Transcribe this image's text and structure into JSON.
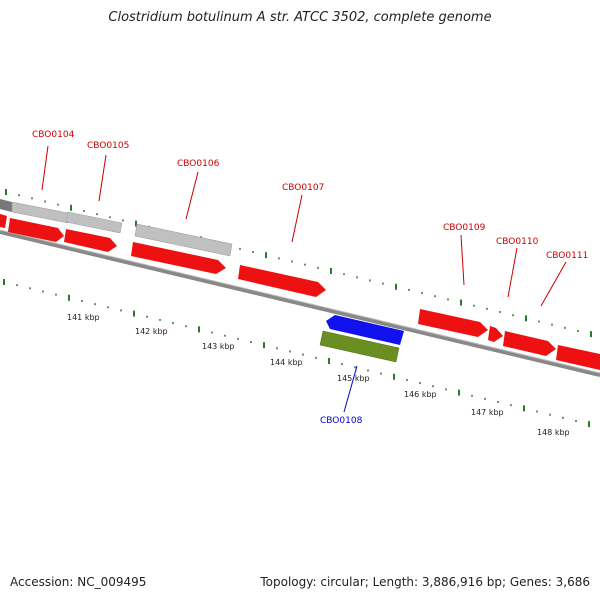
{
  "title": "Clostridium botulinum A str. ATCC 3502, complete genome",
  "footer": {
    "accession": "Accession: NC_009495",
    "summary": "Topology: circular; Length: 3,886,916 bp; Genes: 3,686"
  },
  "colors": {
    "forward_cds": "#ee1111",
    "reverse_cds": "#1111ee",
    "reverse_gene": "#6b8e23",
    "pseudo": "#c0c0c0",
    "dark_gene": "#777777",
    "backbone": "#888888",
    "ticks": "#2a7a2a",
    "label_forward": "#cc0000",
    "label_reverse": "#0000cc"
  },
  "genes": [
    {
      "id": "CBO0104",
      "strand": "+"
    },
    {
      "id": "CBO0105",
      "strand": "+"
    },
    {
      "id": "CBO0106",
      "strand": "+"
    },
    {
      "id": "CBO0107",
      "strand": "+"
    },
    {
      "id": "CBO0108",
      "strand": "-"
    },
    {
      "id": "CBO0109",
      "strand": "+"
    },
    {
      "id": "CBO0110",
      "strand": "+"
    },
    {
      "id": "CBO0111",
      "strand": "+"
    }
  ],
  "kbp_labels": [
    "141 kbp",
    "142 kbp",
    "143 kbp",
    "144 kbp",
    "145 kbp",
    "146 kbp",
    "147 kbp",
    "148 kbp"
  ]
}
